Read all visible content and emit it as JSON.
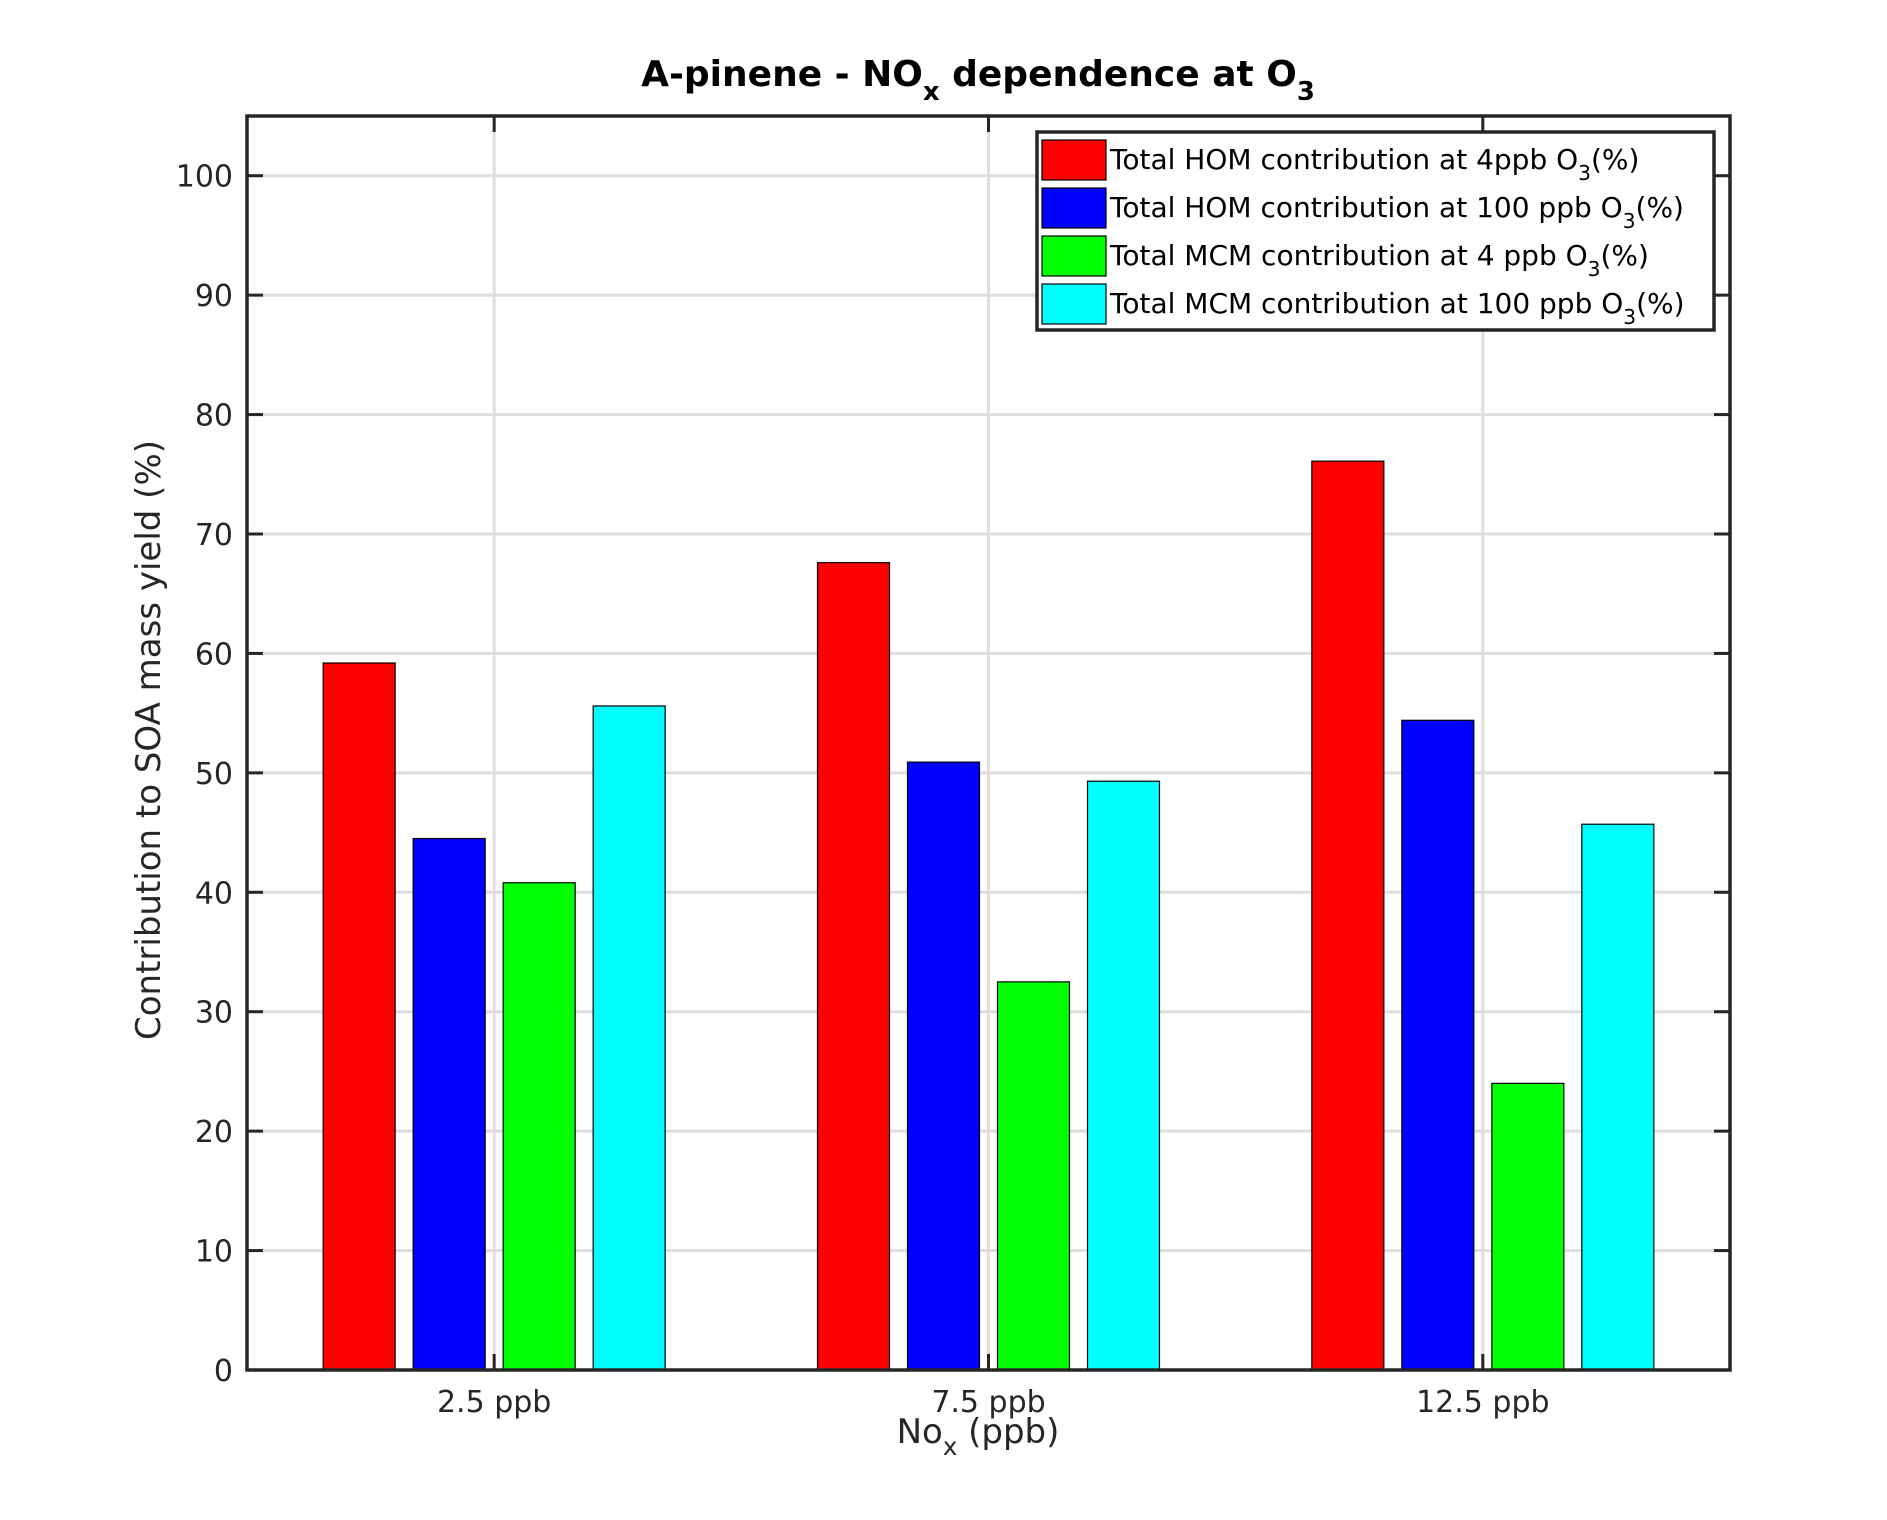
{
  "chart_data": {
    "type": "bar",
    "title": {
      "prefix": "A-pinene - NO",
      "sub1": "x",
      "middle": " dependence at O",
      "sub2": "3"
    },
    "xlabel": {
      "main": "No",
      "sub": "x",
      "rest": " (ppb)"
    },
    "ylabel": "Contribution to SOA mass yield (%)",
    "categories": [
      "2.5 ppb",
      "7.5 ppb",
      "12.5 ppb"
    ],
    "ylim": [
      0,
      105
    ],
    "yticks": [
      0,
      10,
      20,
      30,
      40,
      50,
      60,
      70,
      80,
      90,
      100
    ],
    "grid": true,
    "legend_position": "top-right",
    "series": [
      {
        "name": {
          "main": "Total HOM contribution at 4ppb O",
          "sub": "3",
          "rest": "(%)"
        },
        "color": "#ff0000",
        "values": [
          59.2,
          67.6,
          76.1
        ]
      },
      {
        "name": {
          "main": "Total HOM contribution at 100 ppb O",
          "sub": "3",
          "rest": "(%)"
        },
        "color": "#0000ff",
        "values": [
          44.5,
          50.9,
          54.4
        ]
      },
      {
        "name": {
          "main": "Total MCM contribution at 4 ppb O",
          "sub": "3",
          "rest": "(%)"
        },
        "color": "#00ff00",
        "values": [
          40.8,
          32.5,
          24.0
        ]
      },
      {
        "name": {
          "main": "Total MCM contribution at 100 ppb O",
          "sub": "3",
          "rest": "(%)"
        },
        "color": "#00ffff",
        "values": [
          55.6,
          49.3,
          45.7
        ]
      }
    ]
  }
}
